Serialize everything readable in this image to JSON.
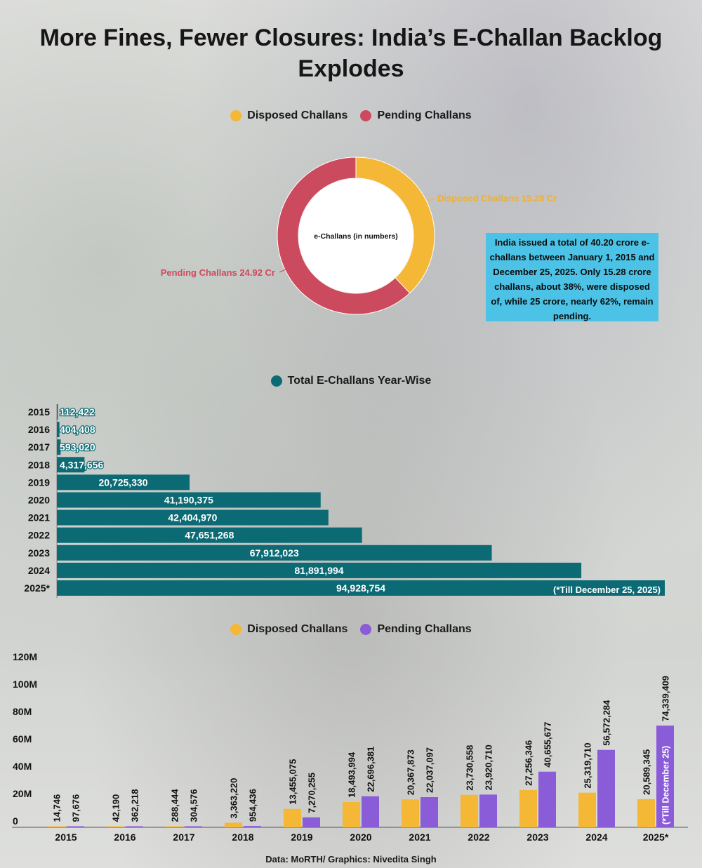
{
  "title": "More Fines, Fewer Closures: India’s E-Challan Backlog Explodes",
  "source": "Data: MoRTH/ Graphics: Nivedita Singh",
  "info_box": "India issued a total of 40.20 crore e-challans between January 1, 2015 and December 25, 2025. Only 15.28 crore challans, about 38%, were disposed of, while 25 crore, nearly 62%, remain pending.",
  "colors": {
    "disposed": "#f4b736",
    "pending_donut": "#cc4a5e",
    "pending_bar": "#8b5cd8",
    "total": "#0b6a74",
    "info": "#4cc3e6"
  },
  "chart_data": [
    {
      "type": "pie",
      "donut": true,
      "center_label": "e-Challans (in numbers)",
      "legend": [
        "Disposed Challans",
        "Pending Challans"
      ],
      "slices": [
        {
          "label": "Disposed Challans 15.28 Cr",
          "value": 15.28
        },
        {
          "label": "Pending Challans 24.92 Cr",
          "value": 24.92
        }
      ]
    },
    {
      "type": "bar",
      "orientation": "horizontal",
      "legend": "Total E-Challans Year-Wise",
      "categories": [
        "2015",
        "2016",
        "2017",
        "2018",
        "2019",
        "2020",
        "2021",
        "2022",
        "2023",
        "2024",
        "2025*"
      ],
      "values": [
        112422,
        404408,
        593020,
        4317656,
        20725330,
        41190375,
        42404970,
        47651268,
        67912023,
        81891994,
        94928754
      ],
      "labels": [
        "112,422",
        "404,408",
        "593,020",
        "4,317,656",
        "20,725,330",
        "41,190,375",
        "42,404,970",
        "47,651,268",
        "67,912,023",
        "81,891,994",
        "94,928,754"
      ],
      "annotation": "(*Till December 25, 2025)"
    },
    {
      "type": "bar",
      "orientation": "vertical",
      "legend": [
        "Disposed Challans",
        "Pending Challans"
      ],
      "categories": [
        "2015",
        "2016",
        "2017",
        "2018",
        "2019",
        "2020",
        "2021",
        "2022",
        "2023",
        "2024",
        "2025*"
      ],
      "ylim": [
        0,
        120000000
      ],
      "yticks": [
        "0",
        "20M",
        "40M",
        "60M",
        "80M",
        "100M",
        "120M"
      ],
      "series": [
        {
          "name": "Disposed Challans",
          "values": [
            14746,
            42190,
            288444,
            3363220,
            13455075,
            18493994,
            20367873,
            23730558,
            27256346,
            25319710,
            20589345
          ],
          "labels": [
            "14,746",
            "42,190",
            "288,444",
            "3,363,220",
            "13,455,075",
            "18,493,994",
            "20,367,873",
            "23,730,558",
            "27,256,346",
            "25,319,710",
            "20,589,345"
          ]
        },
        {
          "name": "Pending Challans",
          "values": [
            97676,
            362218,
            304576,
            954436,
            7270255,
            22696381,
            22037097,
            23920710,
            40655677,
            56572284,
            74339409
          ],
          "labels": [
            "97,676",
            "362,218",
            "304,576",
            "954,436",
            "7,270,255",
            "22,696,381",
            "22,037,097",
            "23,920,710",
            "40,655,677",
            "56,572,284",
            "74,339,409"
          ]
        }
      ],
      "annotation": "(*Till December 25)"
    }
  ]
}
